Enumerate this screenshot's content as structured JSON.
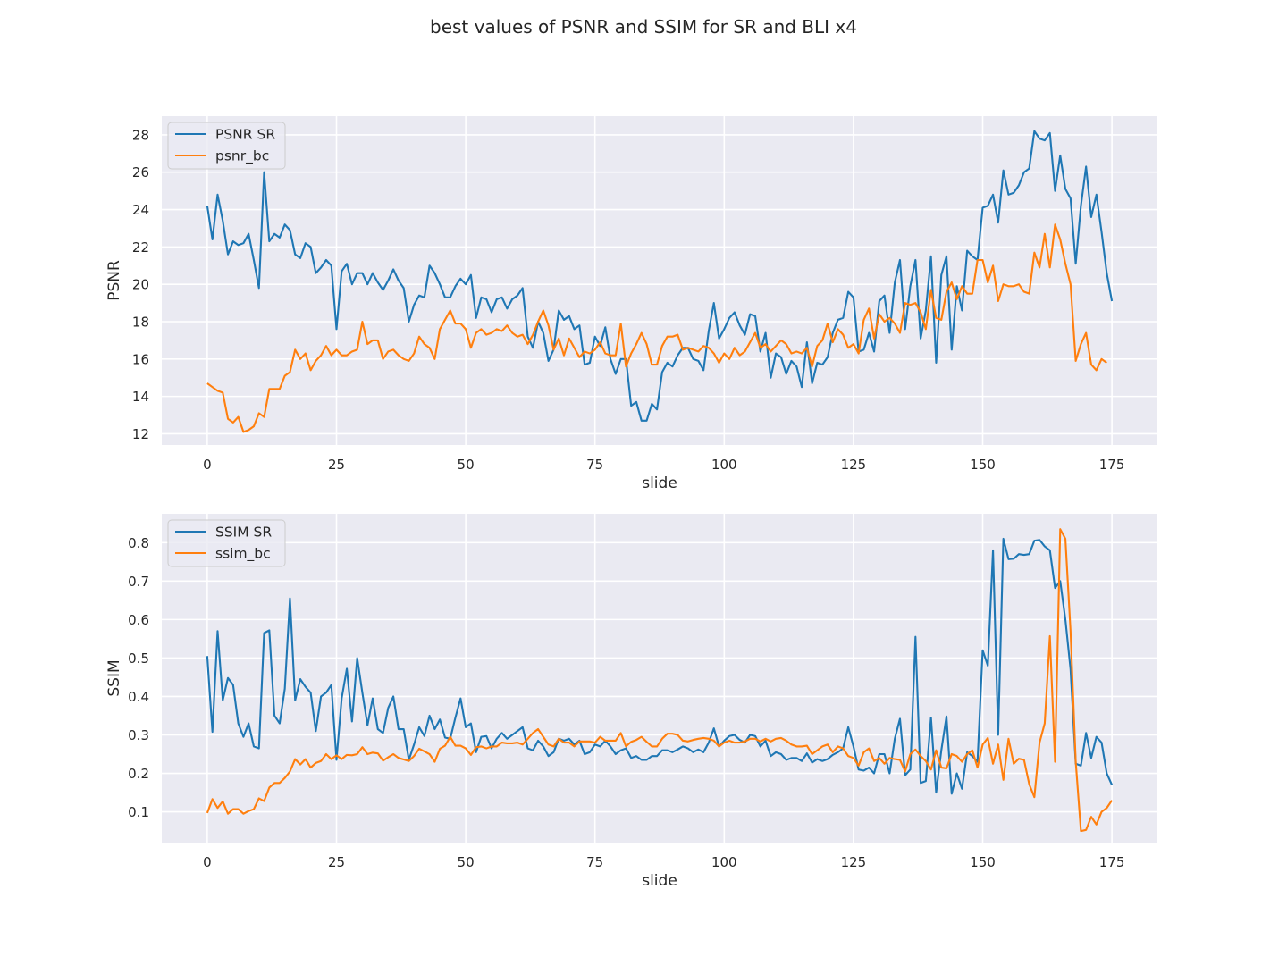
{
  "suptitle": "best values of PSNR and SSIM for SR and BLI x4",
  "colors": {
    "background": "#eaeaf2",
    "grid": "#ffffff",
    "sr": "#1f77b4",
    "bc": "#ff7f0e",
    "text": "#262626"
  },
  "chart_data": [
    {
      "type": "line",
      "xlabel": "slide",
      "ylabel": "PSNR",
      "xlim": [
        -8.8,
        183.8
      ],
      "ylim": [
        11.4,
        29.0
      ],
      "xticks": [
        0,
        25,
        50,
        75,
        100,
        125,
        150,
        175
      ],
      "yticks": [
        12,
        14,
        16,
        18,
        20,
        22,
        24,
        26,
        28
      ],
      "ytick_labels": [
        "12",
        "14",
        "16",
        "18",
        "20",
        "22",
        "24",
        "26",
        "28"
      ],
      "grid": true,
      "legend_position": "top-left",
      "series": [
        {
          "name": "PSNR SR",
          "color": "#1f77b4",
          "values": [
            24.2,
            22.4,
            24.8,
            23.4,
            21.6,
            22.3,
            22.1,
            22.2,
            22.7,
            21.3,
            19.8,
            26.0,
            22.3,
            22.7,
            22.5,
            23.2,
            22.9,
            21.6,
            21.4,
            22.2,
            22.0,
            20.6,
            20.9,
            21.3,
            21.0,
            17.6,
            20.7,
            21.1,
            20.0,
            20.6,
            20.6,
            20.0,
            20.6,
            20.1,
            19.7,
            20.2,
            20.8,
            20.2,
            19.8,
            18.0,
            18.9,
            19.4,
            19.3,
            21.0,
            20.6,
            20.0,
            19.3,
            19.3,
            19.9,
            20.3,
            20.0,
            20.5,
            18.2,
            19.3,
            19.2,
            18.5,
            19.2,
            19.3,
            18.7,
            19.2,
            19.4,
            19.8,
            17.2,
            16.6,
            18.0,
            17.4,
            15.9,
            16.5,
            18.6,
            18.1,
            18.3,
            17.6,
            17.8,
            15.7,
            15.8,
            17.2,
            16.7,
            17.7,
            16.0,
            15.2,
            16.0,
            16.0,
            13.5,
            13.7,
            12.7,
            12.7,
            13.6,
            13.3,
            15.3,
            15.8,
            15.6,
            16.2,
            16.6,
            16.6,
            16.0,
            15.9,
            15.4,
            17.5,
            19.0,
            17.1,
            17.6,
            18.2,
            18.5,
            17.8,
            17.3,
            18.4,
            18.3,
            16.4,
            17.4,
            15.0,
            16.3,
            16.1,
            15.2,
            15.9,
            15.6,
            14.5,
            16.9,
            14.7,
            15.8,
            15.7,
            16.1,
            17.4,
            18.1,
            18.2,
            19.6,
            19.3,
            16.4,
            16.5,
            17.4,
            16.4,
            19.1,
            19.4,
            17.4,
            20.1,
            21.3,
            17.6,
            19.9,
            21.3,
            17.1,
            18.6,
            21.5,
            15.8,
            20.5,
            21.5,
            16.5,
            19.9,
            18.6,
            21.8,
            21.5,
            21.3,
            24.1,
            24.2,
            24.8,
            23.3,
            26.1,
            24.8,
            24.9,
            25.3,
            26.0,
            26.2,
            28.2,
            27.8,
            27.7,
            28.1,
            25.0,
            26.9,
            25.1,
            24.6,
            21.1,
            24.2,
            26.3,
            23.6,
            24.8,
            22.8,
            20.6,
            19.1
          ]
        },
        {
          "name": "psnr_bc",
          "color": "#ff7f0e",
          "values": [
            14.7,
            14.5,
            14.3,
            14.2,
            12.8,
            12.6,
            12.9,
            12.1,
            12.2,
            12.4,
            13.1,
            12.9,
            14.4,
            14.4,
            14.4,
            15.1,
            15.3,
            16.5,
            16.0,
            16.3,
            15.4,
            15.9,
            16.2,
            16.7,
            16.2,
            16.5,
            16.2,
            16.2,
            16.4,
            16.5,
            18.0,
            16.8,
            17.0,
            17.0,
            16.0,
            16.4,
            16.5,
            16.2,
            16.0,
            15.9,
            16.3,
            17.2,
            16.8,
            16.6,
            16.0,
            17.6,
            18.1,
            18.6,
            17.9,
            17.9,
            17.6,
            16.6,
            17.4,
            17.6,
            17.3,
            17.4,
            17.6,
            17.5,
            17.8,
            17.4,
            17.2,
            17.3,
            16.8,
            17.3,
            18.0,
            18.6,
            17.8,
            16.5,
            17.1,
            16.2,
            17.1,
            16.6,
            16.1,
            16.4,
            16.3,
            16.5,
            16.9,
            16.3,
            16.2,
            16.2,
            17.9,
            15.6,
            16.3,
            16.8,
            17.4,
            16.8,
            15.7,
            15.7,
            16.7,
            17.2,
            17.2,
            17.3,
            16.5,
            16.6,
            16.5,
            16.4,
            16.7,
            16.6,
            16.3,
            15.8,
            16.3,
            16.0,
            16.6,
            16.2,
            16.4,
            16.9,
            17.4,
            16.6,
            16.8,
            16.4,
            16.7,
            17.0,
            16.8,
            16.3,
            16.4,
            16.3,
            16.6,
            15.6,
            16.7,
            17.0,
            17.9,
            16.9,
            17.6,
            17.3,
            16.6,
            16.8,
            16.3,
            18.1,
            18.7,
            17.1,
            18.4,
            18.0,
            18.2,
            17.9,
            17.4,
            19.0,
            18.9,
            19.0,
            18.5,
            17.6,
            19.7,
            18.2,
            18.1,
            19.6,
            20.1,
            19.2,
            19.9,
            19.5,
            19.5,
            21.3,
            21.3,
            20.1,
            21.0,
            19.1,
            20.0,
            19.9,
            19.9,
            20.0,
            19.6,
            19.5,
            21.7,
            20.9,
            22.7,
            20.9,
            23.2,
            22.4,
            21.1,
            20.0,
            15.9,
            16.8,
            17.4,
            15.7,
            15.4,
            16.0,
            15.8
          ]
        }
      ]
    },
    {
      "type": "line",
      "xlabel": "slide",
      "ylabel": "SSIM",
      "xlim": [
        -8.8,
        183.8
      ],
      "ylim": [
        0.02,
        0.875
      ],
      "xticks": [
        0,
        25,
        50,
        75,
        100,
        125,
        150,
        175
      ],
      "yticks": [
        0.1,
        0.2,
        0.3,
        0.4,
        0.5,
        0.6,
        0.7,
        0.8
      ],
      "ytick_labels": [
        "0.1",
        "0.2",
        "0.3",
        "0.4",
        "0.5",
        "0.6",
        "0.7",
        "0.8"
      ],
      "grid": true,
      "legend_position": "top-left",
      "series": [
        {
          "name": "SSIM SR",
          "color": "#1f77b4",
          "values": [
            0.505,
            0.308,
            0.57,
            0.39,
            0.448,
            0.43,
            0.33,
            0.295,
            0.33,
            0.27,
            0.265,
            0.565,
            0.572,
            0.35,
            0.33,
            0.42,
            0.655,
            0.39,
            0.445,
            0.425,
            0.41,
            0.31,
            0.4,
            0.41,
            0.43,
            0.235,
            0.395,
            0.472,
            0.335,
            0.5,
            0.41,
            0.325,
            0.395,
            0.315,
            0.305,
            0.37,
            0.4,
            0.315,
            0.315,
            0.235,
            0.275,
            0.32,
            0.297,
            0.35,
            0.315,
            0.34,
            0.293,
            0.29,
            0.345,
            0.395,
            0.32,
            0.33,
            0.255,
            0.295,
            0.297,
            0.265,
            0.29,
            0.305,
            0.29,
            0.3,
            0.31,
            0.32,
            0.265,
            0.26,
            0.285,
            0.27,
            0.245,
            0.255,
            0.29,
            0.285,
            0.29,
            0.275,
            0.285,
            0.25,
            0.255,
            0.275,
            0.27,
            0.285,
            0.27,
            0.25,
            0.26,
            0.265,
            0.24,
            0.245,
            0.235,
            0.235,
            0.245,
            0.245,
            0.26,
            0.26,
            0.255,
            0.262,
            0.27,
            0.265,
            0.255,
            0.262,
            0.255,
            0.28,
            0.317,
            0.27,
            0.285,
            0.297,
            0.3,
            0.287,
            0.28,
            0.3,
            0.297,
            0.27,
            0.285,
            0.245,
            0.255,
            0.25,
            0.235,
            0.24,
            0.24,
            0.232,
            0.252,
            0.228,
            0.237,
            0.232,
            0.237,
            0.248,
            0.255,
            0.265,
            0.32,
            0.27,
            0.21,
            0.207,
            0.215,
            0.2,
            0.25,
            0.25,
            0.2,
            0.29,
            0.342,
            0.195,
            0.21,
            0.555,
            0.175,
            0.18,
            0.345,
            0.15,
            0.26,
            0.348,
            0.147,
            0.2,
            0.16,
            0.255,
            0.245,
            0.23,
            0.52,
            0.48,
            0.78,
            0.3,
            0.81,
            0.757,
            0.758,
            0.77,
            0.768,
            0.77,
            0.805,
            0.807,
            0.79,
            0.78,
            0.682,
            0.7,
            0.6,
            0.47,
            0.225,
            0.22,
            0.305,
            0.24,
            0.295,
            0.28,
            0.2,
            0.17
          ]
        },
        {
          "name": "ssim_bc",
          "color": "#ff7f0e",
          "values": [
            0.097,
            0.133,
            0.11,
            0.127,
            0.095,
            0.107,
            0.107,
            0.095,
            0.102,
            0.107,
            0.135,
            0.128,
            0.163,
            0.175,
            0.175,
            0.188,
            0.205,
            0.237,
            0.223,
            0.237,
            0.215,
            0.227,
            0.232,
            0.25,
            0.237,
            0.247,
            0.237,
            0.248,
            0.247,
            0.25,
            0.268,
            0.25,
            0.254,
            0.252,
            0.233,
            0.242,
            0.25,
            0.24,
            0.236,
            0.232,
            0.245,
            0.264,
            0.257,
            0.25,
            0.23,
            0.264,
            0.272,
            0.295,
            0.272,
            0.272,
            0.265,
            0.248,
            0.268,
            0.27,
            0.265,
            0.27,
            0.27,
            0.28,
            0.278,
            0.278,
            0.28,
            0.275,
            0.29,
            0.305,
            0.315,
            0.295,
            0.275,
            0.27,
            0.29,
            0.28,
            0.28,
            0.27,
            0.283,
            0.283,
            0.283,
            0.28,
            0.295,
            0.285,
            0.285,
            0.285,
            0.305,
            0.27,
            0.282,
            0.287,
            0.295,
            0.282,
            0.27,
            0.27,
            0.29,
            0.303,
            0.303,
            0.3,
            0.285,
            0.283,
            0.287,
            0.29,
            0.292,
            0.29,
            0.285,
            0.27,
            0.28,
            0.285,
            0.28,
            0.28,
            0.283,
            0.29,
            0.29,
            0.283,
            0.29,
            0.283,
            0.29,
            0.292,
            0.285,
            0.275,
            0.27,
            0.27,
            0.272,
            0.25,
            0.26,
            0.27,
            0.275,
            0.255,
            0.27,
            0.265,
            0.245,
            0.24,
            0.22,
            0.255,
            0.265,
            0.232,
            0.24,
            0.225,
            0.24,
            0.237,
            0.235,
            0.205,
            0.25,
            0.262,
            0.245,
            0.232,
            0.21,
            0.26,
            0.215,
            0.213,
            0.25,
            0.245,
            0.23,
            0.25,
            0.26,
            0.215,
            0.275,
            0.292,
            0.225,
            0.275,
            0.183,
            0.29,
            0.225,
            0.238,
            0.235,
            0.172,
            0.138,
            0.28,
            0.33,
            0.557,
            0.23,
            0.835,
            0.81,
            0.57,
            0.23,
            0.05,
            0.053,
            0.087,
            0.067,
            0.1,
            0.11,
            0.13
          ]
        }
      ]
    }
  ]
}
